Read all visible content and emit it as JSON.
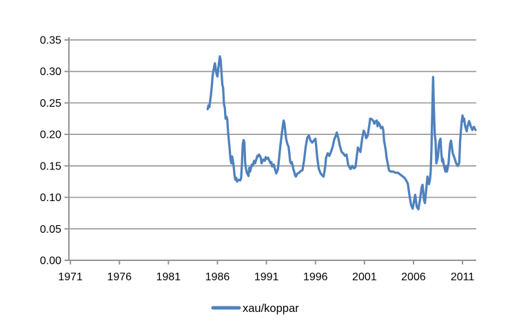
{
  "page": {
    "background": "#ffffff"
  },
  "legend": {
    "label": "xau/koppar"
  },
  "chart_data": {
    "type": "line",
    "title": "",
    "xlabel": "",
    "ylabel": "",
    "grid": "horizontal",
    "legend_position": "bottom-center",
    "line_color": "#4F81BD",
    "grid_color": "#9a9a9a",
    "axis_color": "#949494",
    "label_color": "#000000",
    "x_range": [
      1970.85,
      2012.4
    ],
    "ylim": [
      0,
      0.35
    ],
    "x_ticks": [
      1971,
      1976,
      1981,
      1986,
      1991,
      1996,
      2001,
      2006,
      2011
    ],
    "y_ticks": [
      0,
      0.05,
      0.1,
      0.15,
      0.2,
      0.25,
      0.3,
      0.35
    ],
    "series": [
      {
        "name": "xau/koppar",
        "color": "#4F81BD",
        "points": [
          [
            1985.0,
            0.24
          ],
          [
            1985.08,
            0.246
          ],
          [
            1985.17,
            0.243
          ],
          [
            1985.25,
            0.252
          ],
          [
            1985.33,
            0.262
          ],
          [
            1985.42,
            0.275
          ],
          [
            1985.5,
            0.292
          ],
          [
            1985.58,
            0.3
          ],
          [
            1985.67,
            0.308
          ],
          [
            1985.75,
            0.313
          ],
          [
            1985.83,
            0.303
          ],
          [
            1985.92,
            0.295
          ],
          [
            1986.0,
            0.292
          ],
          [
            1986.08,
            0.304
          ],
          [
            1986.17,
            0.315
          ],
          [
            1986.25,
            0.324
          ],
          [
            1986.33,
            0.318
          ],
          [
            1986.42,
            0.296
          ],
          [
            1986.5,
            0.279
          ],
          [
            1986.58,
            0.274
          ],
          [
            1986.67,
            0.248
          ],
          [
            1986.75,
            0.242
          ],
          [
            1986.83,
            0.225
          ],
          [
            1986.92,
            0.228
          ],
          [
            1987.0,
            0.224
          ],
          [
            1987.08,
            0.204
          ],
          [
            1987.17,
            0.19
          ],
          [
            1987.25,
            0.176
          ],
          [
            1987.33,
            0.161
          ],
          [
            1987.42,
            0.154
          ],
          [
            1987.5,
            0.165
          ],
          [
            1987.58,
            0.158
          ],
          [
            1987.67,
            0.148
          ],
          [
            1987.75,
            0.134
          ],
          [
            1987.83,
            0.128
          ],
          [
            1987.92,
            0.131
          ],
          [
            1988.0,
            0.125
          ],
          [
            1988.17,
            0.128
          ],
          [
            1988.33,
            0.127
          ],
          [
            1988.42,
            0.131
          ],
          [
            1988.5,
            0.155
          ],
          [
            1988.58,
            0.184
          ],
          [
            1988.67,
            0.191
          ],
          [
            1988.75,
            0.187
          ],
          [
            1988.83,
            0.155
          ],
          [
            1988.92,
            0.145
          ],
          [
            1989.0,
            0.139
          ],
          [
            1989.17,
            0.134
          ],
          [
            1989.25,
            0.147
          ],
          [
            1989.33,
            0.141
          ],
          [
            1989.5,
            0.152
          ],
          [
            1989.58,
            0.15
          ],
          [
            1989.75,
            0.158
          ],
          [
            1989.83,
            0.154
          ],
          [
            1990.0,
            0.162
          ],
          [
            1990.08,
            0.166
          ],
          [
            1990.17,
            0.165
          ],
          [
            1990.25,
            0.168
          ],
          [
            1990.42,
            0.163
          ],
          [
            1990.5,
            0.154
          ],
          [
            1990.67,
            0.16
          ],
          [
            1990.83,
            0.158
          ],
          [
            1990.92,
            0.164
          ],
          [
            1991.08,
            0.161
          ],
          [
            1991.17,
            0.163
          ],
          [
            1991.33,
            0.157
          ],
          [
            1991.42,
            0.154
          ],
          [
            1991.5,
            0.156
          ],
          [
            1991.58,
            0.149
          ],
          [
            1991.75,
            0.152
          ],
          [
            1991.83,
            0.147
          ],
          [
            1991.92,
            0.142
          ],
          [
            1992.0,
            0.138
          ],
          [
            1992.08,
            0.141
          ],
          [
            1992.17,
            0.145
          ],
          [
            1992.33,
            0.168
          ],
          [
            1992.42,
            0.182
          ],
          [
            1992.5,
            0.192
          ],
          [
            1992.58,
            0.203
          ],
          [
            1992.67,
            0.214
          ],
          [
            1992.75,
            0.222
          ],
          [
            1992.83,
            0.218
          ],
          [
            1992.92,
            0.205
          ],
          [
            1993.0,
            0.193
          ],
          [
            1993.08,
            0.188
          ],
          [
            1993.17,
            0.183
          ],
          [
            1993.25,
            0.181
          ],
          [
            1993.33,
            0.17
          ],
          [
            1993.42,
            0.157
          ],
          [
            1993.5,
            0.154
          ],
          [
            1993.58,
            0.156
          ],
          [
            1993.67,
            0.151
          ],
          [
            1993.75,
            0.144
          ],
          [
            1993.83,
            0.141
          ],
          [
            1993.92,
            0.135
          ],
          [
            1994.0,
            0.133
          ],
          [
            1994.17,
            0.138
          ],
          [
            1994.33,
            0.139
          ],
          [
            1994.5,
            0.142
          ],
          [
            1994.67,
            0.143
          ],
          [
            1994.83,
            0.158
          ],
          [
            1995.0,
            0.18
          ],
          [
            1995.17,
            0.195
          ],
          [
            1995.33,
            0.198
          ],
          [
            1995.5,
            0.19
          ],
          [
            1995.67,
            0.187
          ],
          [
            1995.83,
            0.19
          ],
          [
            1996.0,
            0.193
          ],
          [
            1996.08,
            0.18
          ],
          [
            1996.17,
            0.165
          ],
          [
            1996.33,
            0.146
          ],
          [
            1996.5,
            0.139
          ],
          [
            1996.67,
            0.135
          ],
          [
            1996.83,
            0.133
          ],
          [
            1996.92,
            0.141
          ],
          [
            1997.0,
            0.15
          ],
          [
            1997.08,
            0.163
          ],
          [
            1997.25,
            0.17
          ],
          [
            1997.42,
            0.166
          ],
          [
            1997.58,
            0.172
          ],
          [
            1997.75,
            0.18
          ],
          [
            1997.92,
            0.192
          ],
          [
            1998.08,
            0.198
          ],
          [
            1998.17,
            0.203
          ],
          [
            1998.33,
            0.194
          ],
          [
            1998.5,
            0.181
          ],
          [
            1998.67,
            0.172
          ],
          [
            1998.83,
            0.17
          ],
          [
            1999.0,
            0.166
          ],
          [
            1999.17,
            0.168
          ],
          [
            1999.33,
            0.152
          ],
          [
            1999.5,
            0.147
          ],
          [
            1999.58,
            0.145
          ],
          [
            1999.75,
            0.15
          ],
          [
            1999.92,
            0.146
          ],
          [
            2000.08,
            0.148
          ],
          [
            2000.25,
            0.17
          ],
          [
            2000.33,
            0.179
          ],
          [
            2000.5,
            0.175
          ],
          [
            2000.58,
            0.172
          ],
          [
            2000.75,
            0.192
          ],
          [
            2000.92,
            0.206
          ],
          [
            2001.08,
            0.2
          ],
          [
            2001.17,
            0.194
          ],
          [
            2001.33,
            0.198
          ],
          [
            2001.5,
            0.216
          ],
          [
            2001.58,
            0.225
          ],
          [
            2001.75,
            0.224
          ],
          [
            2001.92,
            0.221
          ],
          [
            2002.0,
            0.217
          ],
          [
            2002.08,
            0.22
          ],
          [
            2002.25,
            0.222
          ],
          [
            2002.33,
            0.213
          ],
          [
            2002.42,
            0.219
          ],
          [
            2002.58,
            0.215
          ],
          [
            2002.67,
            0.21
          ],
          [
            2002.83,
            0.212
          ],
          [
            2002.92,
            0.206
          ],
          [
            2003.0,
            0.19
          ],
          [
            2003.17,
            0.175
          ],
          [
            2003.25,
            0.163
          ],
          [
            2003.42,
            0.15
          ],
          [
            2003.5,
            0.143
          ],
          [
            2003.67,
            0.141
          ],
          [
            2003.92,
            0.141
          ],
          [
            2004.17,
            0.139
          ],
          [
            2004.42,
            0.139
          ],
          [
            2004.67,
            0.136
          ],
          [
            2004.92,
            0.133
          ],
          [
            2005.08,
            0.131
          ],
          [
            2005.25,
            0.127
          ],
          [
            2005.42,
            0.122
          ],
          [
            2005.58,
            0.104
          ],
          [
            2005.75,
            0.088
          ],
          [
            2005.92,
            0.082
          ],
          [
            2006.08,
            0.096
          ],
          [
            2006.17,
            0.104
          ],
          [
            2006.33,
            0.085
          ],
          [
            2006.5,
            0.081
          ],
          [
            2006.67,
            0.097
          ],
          [
            2006.83,
            0.116
          ],
          [
            2006.92,
            0.12
          ],
          [
            2007.08,
            0.095
          ],
          [
            2007.17,
            0.091
          ],
          [
            2007.33,
            0.118
          ],
          [
            2007.42,
            0.133
          ],
          [
            2007.58,
            0.121
          ],
          [
            2007.67,
            0.127
          ],
          [
            2007.75,
            0.14
          ],
          [
            2007.83,
            0.175
          ],
          [
            2007.92,
            0.24
          ],
          [
            2008.0,
            0.291
          ],
          [
            2008.08,
            0.24
          ],
          [
            2008.17,
            0.2
          ],
          [
            2008.25,
            0.189
          ],
          [
            2008.33,
            0.154
          ],
          [
            2008.42,
            0.16
          ],
          [
            2008.5,
            0.165
          ],
          [
            2008.58,
            0.183
          ],
          [
            2008.67,
            0.19
          ],
          [
            2008.75,
            0.193
          ],
          [
            2008.83,
            0.173
          ],
          [
            2008.92,
            0.157
          ],
          [
            2009.0,
            0.161
          ],
          [
            2009.08,
            0.152
          ],
          [
            2009.25,
            0.141
          ],
          [
            2009.33,
            0.15
          ],
          [
            2009.42,
            0.141
          ],
          [
            2009.5,
            0.148
          ],
          [
            2009.58,
            0.155
          ],
          [
            2009.67,
            0.175
          ],
          [
            2009.75,
            0.186
          ],
          [
            2009.83,
            0.19
          ],
          [
            2009.92,
            0.18
          ],
          [
            2010.0,
            0.17
          ],
          [
            2010.17,
            0.163
          ],
          [
            2010.33,
            0.155
          ],
          [
            2010.5,
            0.15
          ],
          [
            2010.58,
            0.152
          ],
          [
            2010.67,
            0.155
          ],
          [
            2010.75,
            0.188
          ],
          [
            2010.83,
            0.205
          ],
          [
            2010.92,
            0.22
          ],
          [
            2011.0,
            0.23
          ],
          [
            2011.08,
            0.221
          ],
          [
            2011.17,
            0.225
          ],
          [
            2011.25,
            0.215
          ],
          [
            2011.33,
            0.21
          ],
          [
            2011.42,
            0.205
          ],
          [
            2011.5,
            0.212
          ],
          [
            2011.58,
            0.216
          ],
          [
            2011.67,
            0.221
          ],
          [
            2011.75,
            0.218
          ],
          [
            2011.83,
            0.213
          ],
          [
            2011.92,
            0.21
          ],
          [
            2012.0,
            0.207
          ],
          [
            2012.08,
            0.21
          ],
          [
            2012.17,
            0.212
          ],
          [
            2012.25,
            0.209
          ],
          [
            2012.33,
            0.207
          ]
        ]
      }
    ]
  }
}
